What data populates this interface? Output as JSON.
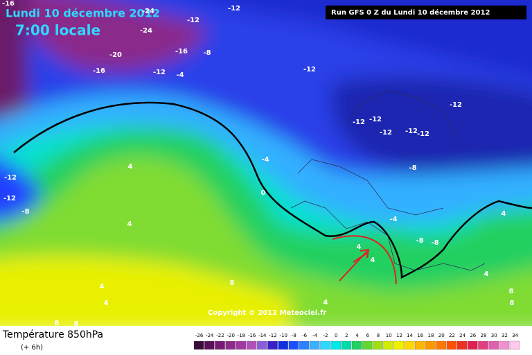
{
  "header": {
    "date": "Lundi 10 décembre 2012",
    "time": "7:00 locale",
    "run": "Run GFS 0 Z du Lundi 10 décembre 2012",
    "copyright": "Copyright © 2012 Meteociel.fr"
  },
  "map": {
    "variable": "Température 850hPa",
    "lead": "(+ 6h)",
    "contour_labels": [
      -16,
      -24,
      -12,
      -12,
      -24,
      -20,
      -16,
      -8,
      -16,
      -12,
      -4,
      -12,
      -12,
      -12,
      -12,
      -12,
      -12,
      -12,
      -4,
      -8,
      4,
      -12,
      -12,
      -8,
      0,
      4,
      -4,
      -8,
      -8,
      4,
      4,
      4,
      4,
      4,
      8,
      4,
      8,
      4,
      8,
      8,
      8
    ]
  },
  "legend": {
    "ticks": [
      -26,
      -24,
      -22,
      -20,
      -18,
      -16,
      -14,
      -12,
      -10,
      -8,
      -6,
      -4,
      -2,
      0,
      2,
      4,
      6,
      8,
      10,
      12,
      14,
      16,
      18,
      20,
      22,
      24,
      26,
      28,
      30,
      32,
      34
    ],
    "colors": [
      "#3a0a3a",
      "#5a1058",
      "#761a74",
      "#8e2a8c",
      "#a03aa0",
      "#b050b8",
      "#8a60d8",
      "#3a20c8",
      "#1030e0",
      "#1a50ff",
      "#2a80ff",
      "#3ab0ff",
      "#30d8ff",
      "#00e8e8",
      "#00dca8",
      "#20d060",
      "#60d830",
      "#a0e010",
      "#d0ec00",
      "#f0f000",
      "#ffd800",
      "#ffb800",
      "#ff9800",
      "#ff7800",
      "#ff5000",
      "#f03020",
      "#e02050",
      "#e04080",
      "#e060b0",
      "#f090d0",
      "#ffc8ec"
    ]
  }
}
